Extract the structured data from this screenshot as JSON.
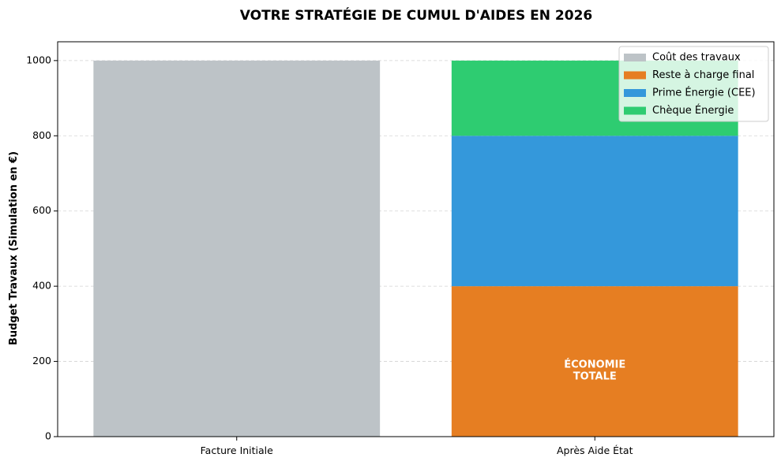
{
  "chart_data": {
    "type": "bar",
    "title": "VOTRE STRATÉGIE DE CUMUL D'AIDES EN 2026",
    "xlabel": "",
    "ylabel": "Budget Travaux (Simulation en €)",
    "ylim": [
      0,
      1050
    ],
    "yticks": [
      0,
      200,
      400,
      600,
      800,
      1000
    ],
    "grid": "y-dashed",
    "legend_position": "top-right",
    "categories": [
      "Facture Initiale",
      "Après Aide État"
    ],
    "series": [
      {
        "name": "Coût des travaux",
        "color": "#bdc3c7",
        "values": [
          1000,
          0
        ]
      },
      {
        "name": "Reste à charge final",
        "color": "#e67e22",
        "values": [
          0,
          400
        ]
      },
      {
        "name": "Prime Énergie (CEE)",
        "color": "#3498db",
        "values": [
          0,
          400
        ]
      },
      {
        "name": "Chèque Énergie",
        "color": "#2ecc71",
        "values": [
          0,
          200
        ]
      }
    ],
    "annotations": [
      {
        "category": "Après Aide État",
        "y": 175,
        "lines": [
          "ÉCONOMIE",
          "TOTALE"
        ]
      }
    ]
  }
}
